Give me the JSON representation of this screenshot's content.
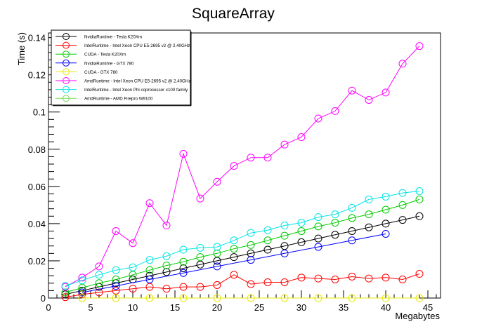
{
  "chart_data": {
    "type": "line",
    "title": "SquareArray",
    "xlabel": "Megabytes",
    "ylabel": "Time (s)",
    "xlim": [
      0,
      46.5
    ],
    "ylim": [
      0,
      0.1425
    ],
    "xticks": [
      0,
      5,
      10,
      15,
      20,
      25,
      30,
      35,
      40,
      45
    ],
    "xtick_labels": [
      "0",
      "5",
      "10",
      "15",
      "20",
      "25",
      "30",
      "35",
      "40",
      "45"
    ],
    "yticks": [
      0,
      0.02,
      0.04,
      0.06,
      0.08,
      0.1,
      0.12,
      0.14
    ],
    "ytick_labels": [
      "0",
      "0.02",
      "0.04",
      "0.06",
      "0.08",
      "0.1",
      "0.12",
      "0.14"
    ],
    "grid": false,
    "legend_position": "top-left",
    "series": [
      {
        "name": "NvidiaRuntime - Tesla K20Xm",
        "color": "#000000",
        "x": [
          2,
          4,
          6,
          8,
          10,
          12,
          14,
          16,
          18,
          20,
          22,
          24,
          26,
          28,
          30,
          32,
          34,
          36,
          38,
          40,
          42,
          44
        ],
        "y": [
          0.002,
          0.004,
          0.006,
          0.008,
          0.01,
          0.012,
          0.014,
          0.016,
          0.018,
          0.02,
          0.022,
          0.024,
          0.026,
          0.028,
          0.03,
          0.032,
          0.034,
          0.036,
          0.038,
          0.04,
          0.042,
          0.044
        ]
      },
      {
        "name": "IntelRuntime - Intel Xeon CPU E5-2695 v2 @ 2.40GHz",
        "color": "#ff0000",
        "x": [
          2,
          4,
          6,
          8,
          10,
          12,
          14,
          16,
          18,
          20,
          22,
          24,
          26,
          28,
          30,
          32,
          34,
          36,
          38,
          40,
          42,
          44
        ],
        "y": [
          0.0005,
          0.002,
          0.003,
          0.004,
          0.005,
          0.006,
          0.005,
          0.006,
          0.006,
          0.007,
          0.0125,
          0.0075,
          0.0085,
          0.0085,
          0.011,
          0.0105,
          0.01,
          0.0115,
          0.0105,
          0.011,
          0.01,
          0.013
        ]
      },
      {
        "name": "CUDA - Tesla K20Xm",
        "color": "#00cc00",
        "x": [
          2,
          4,
          6,
          8,
          10,
          12,
          14,
          16,
          18,
          20,
          22,
          24,
          26,
          28,
          30,
          32,
          34,
          36,
          38,
          40,
          42,
          44
        ],
        "y": [
          0.003,
          0.0055,
          0.008,
          0.01,
          0.0125,
          0.015,
          0.0175,
          0.0195,
          0.022,
          0.024,
          0.0265,
          0.0285,
          0.031,
          0.0335,
          0.036,
          0.0385,
          0.0405,
          0.043,
          0.045,
          0.0475,
          0.05,
          0.053
        ]
      },
      {
        "name": "NvidiaRuntime - GTX 780",
        "color": "#0000ff",
        "x": [
          4,
          8,
          12,
          16,
          20,
          24,
          28,
          32,
          36,
          40
        ],
        "y": [
          0.003,
          0.0065,
          0.01,
          0.0135,
          0.017,
          0.0205,
          0.024,
          0.0275,
          0.031,
          0.0345
        ]
      },
      {
        "name": "CUDA - GTX 780",
        "color": "#e8e800",
        "x": [
          4,
          8,
          12,
          16,
          20,
          24,
          28,
          32,
          36,
          40,
          44
        ],
        "y": [
          0,
          0,
          0,
          0,
          0,
          0,
          0,
          0,
          0,
          0,
          0
        ]
      },
      {
        "name": "AmdRuntime - Intel Xeon CPU E5-2695 v2 @ 2.40GHz",
        "color": "#ff00ff",
        "x": [
          2,
          4,
          6,
          8,
          10,
          12,
          14,
          16,
          18,
          20,
          22,
          24,
          26,
          28,
          30,
          32,
          34,
          36,
          38,
          40,
          42,
          44
        ],
        "y": [
          0.006,
          0.011,
          0.017,
          0.036,
          0.0295,
          0.051,
          0.039,
          0.0775,
          0.0535,
          0.0625,
          0.071,
          0.0755,
          0.0755,
          0.0825,
          0.0865,
          0.0965,
          0.1005,
          0.1115,
          0.1065,
          0.1105,
          0.126,
          0.1355
        ]
      },
      {
        "name": "IntelRuntime - Intel Xeon Phi coprocessor x100 family",
        "color": "#00e5e5",
        "x": [
          2,
          4,
          6,
          8,
          10,
          12,
          14,
          16,
          18,
          20,
          22,
          24,
          26,
          28,
          30,
          32,
          34,
          36,
          38,
          40,
          42,
          44
        ],
        "y": [
          0.0065,
          0.0095,
          0.0125,
          0.015,
          0.0165,
          0.0205,
          0.0225,
          0.026,
          0.027,
          0.0275,
          0.031,
          0.035,
          0.0365,
          0.039,
          0.0405,
          0.0435,
          0.045,
          0.0485,
          0.053,
          0.0545,
          0.0565,
          0.0575
        ]
      },
      {
        "name": "AmdRuntime - AMD Firepro W9100",
        "color": "#77dd55",
        "x": [],
        "y": []
      }
    ]
  }
}
